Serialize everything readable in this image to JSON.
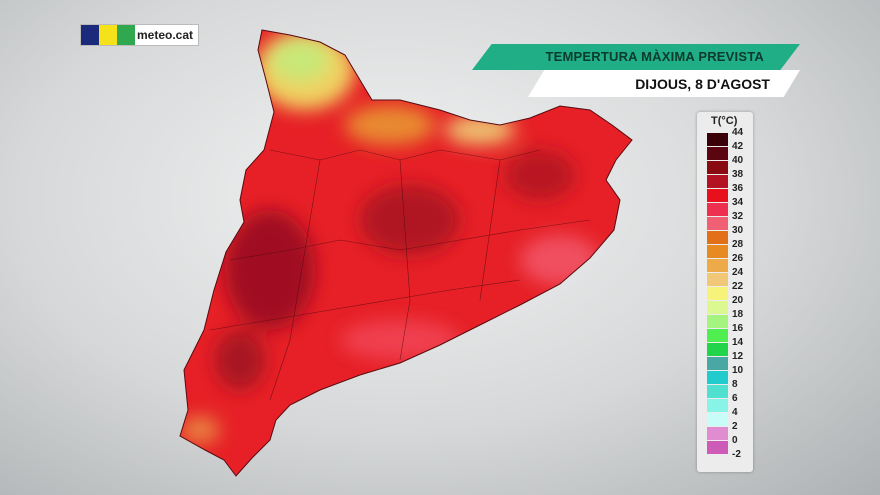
{
  "logo": {
    "text": "meteo.cat",
    "colors": [
      "#1b2a7a",
      "#f5e21a",
      "#2fa84f"
    ]
  },
  "header": {
    "title": "TEMPERTURA MÀXIMA PREVISTA",
    "date": "DIJOUS, 8 D'AGOST",
    "title_color": "#1fae86"
  },
  "legend": {
    "title": "T(°C)",
    "labels": [
      "44",
      "42",
      "40",
      "38",
      "36",
      "34",
      "32",
      "30",
      "28",
      "26",
      "24",
      "22",
      "20",
      "18",
      "16",
      "14",
      "12",
      "10",
      "8",
      "6",
      "4",
      "2",
      "0",
      "-2"
    ],
    "colors": [
      "#3a0008",
      "#5a0510",
      "#8a0a12",
      "#b21222",
      "#e8101c",
      "#ee3050",
      "#f06074",
      "#e27018",
      "#e88a22",
      "#ecaa48",
      "#f0c878",
      "#f6f27a",
      "#dcf890",
      "#a6f480",
      "#50ee50",
      "#22d44a",
      "#4aa8a4",
      "#22cccc",
      "#50e0d0",
      "#88f4e8",
      "#c8fcf8",
      "#e08cd0",
      "#cc5cb8"
    ]
  },
  "map": {
    "region": "Catalunya",
    "base_color": "#e62026"
  }
}
